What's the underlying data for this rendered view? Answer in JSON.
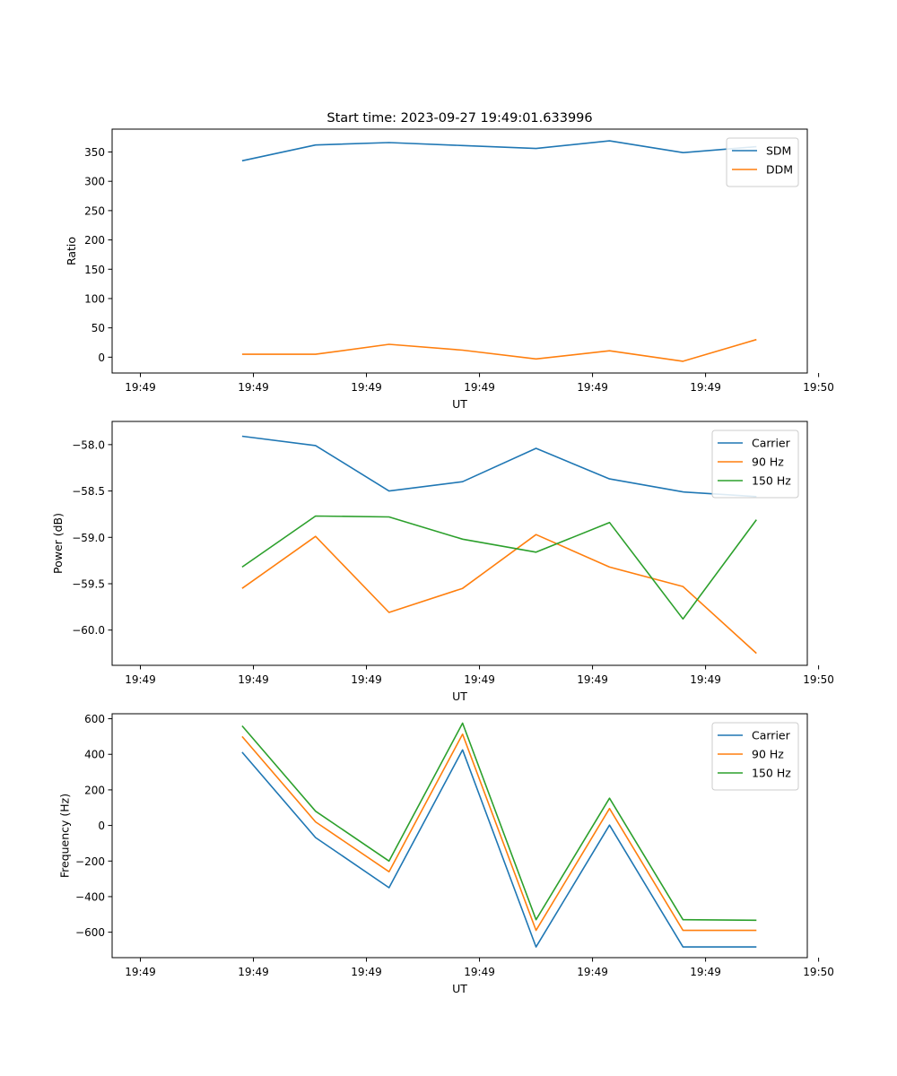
{
  "figure_title": "Start time: 2023-09-27 19:49:01.633996",
  "colors": {
    "blue": "#1f77b4",
    "orange": "#ff7f0e",
    "green": "#2ca02c"
  },
  "chart_data": [
    {
      "type": "line",
      "title": "Start time: 2023-09-27 19:49:01.633996",
      "xlabel": "UT",
      "ylabel": "Ratio",
      "x": [
        0.9,
        1.55,
        2.2,
        2.85,
        3.5,
        4.15,
        4.8,
        5.45
      ],
      "xlim": [
        -0.25,
        5.9
      ],
      "xticks": [
        0,
        1,
        2,
        3,
        4,
        5,
        6
      ],
      "xtick_labels": [
        "19:49",
        "19:49",
        "19:49",
        "19:49",
        "19:49",
        "19:49",
        "19:50"
      ],
      "ylim": [
        -27,
        389
      ],
      "yticks": [
        0,
        50,
        100,
        150,
        200,
        250,
        300,
        350
      ],
      "ytick_labels": [
        "0",
        "50",
        "100",
        "150",
        "200",
        "250",
        "300",
        "350"
      ],
      "legend": "top-right",
      "series": [
        {
          "name": "SDM",
          "color": "#1f77b4",
          "values": [
            335,
            362,
            366,
            361,
            356,
            369,
            349,
            359
          ]
        },
        {
          "name": "DDM",
          "color": "#ff7f0e",
          "values": [
            5,
            5,
            22,
            12,
            -3,
            11,
            -7,
            30
          ]
        }
      ]
    },
    {
      "type": "line",
      "title": "",
      "xlabel": "UT",
      "ylabel": "Power (dB)",
      "x": [
        0.9,
        1.55,
        2.2,
        2.85,
        3.5,
        4.15,
        4.8,
        5.45
      ],
      "xlim": [
        -0.25,
        5.9
      ],
      "xticks": [
        0,
        1,
        2,
        3,
        4,
        5,
        6
      ],
      "xtick_labels": [
        "19:49",
        "19:49",
        "19:49",
        "19:49",
        "19:49",
        "19:49",
        "19:50"
      ],
      "ylim": [
        -60.38,
        -57.75
      ],
      "yticks": [
        -60.0,
        -59.5,
        -59.0,
        -58.5,
        -58.0
      ],
      "ytick_labels": [
        "−60.0",
        "−59.5",
        "−59.0",
        "−58.5",
        "−58.0"
      ],
      "legend": "top-right",
      "series": [
        {
          "name": "Carrier",
          "color": "#1f77b4",
          "values": [
            -57.91,
            -58.01,
            -58.5,
            -58.4,
            -58.04,
            -58.37,
            -58.51,
            -58.56
          ]
        },
        {
          "name": "90 Hz",
          "color": "#ff7f0e",
          "values": [
            -59.55,
            -58.99,
            -59.81,
            -59.55,
            -58.97,
            -59.32,
            -59.53,
            -60.25
          ]
        },
        {
          "name": "150 Hz",
          "color": "#2ca02c",
          "values": [
            -59.32,
            -58.77,
            -58.78,
            -59.02,
            -59.16,
            -58.84,
            -59.88,
            -58.81
          ]
        }
      ]
    },
    {
      "type": "line",
      "title": "",
      "xlabel": "UT",
      "ylabel": "Frequency (Hz)",
      "x": [
        0.9,
        1.55,
        2.2,
        2.85,
        3.5,
        4.15,
        4.8,
        5.45
      ],
      "xlim": [
        -0.25,
        5.9
      ],
      "xticks": [
        0,
        1,
        2,
        3,
        4,
        5,
        6
      ],
      "xtick_labels": [
        "19:49",
        "19:49",
        "19:49",
        "19:49",
        "19:49",
        "19:49",
        "19:50"
      ],
      "ylim": [
        -743,
        628
      ],
      "yticks": [
        -600,
        -400,
        -200,
        0,
        200,
        400,
        600
      ],
      "ytick_labels": [
        "−600",
        "−400",
        "−200",
        "0",
        "200",
        "400",
        "600"
      ],
      "legend": "top-right",
      "series": [
        {
          "name": "Carrier",
          "color": "#1f77b4",
          "values": [
            412,
            -68,
            -350,
            425,
            -683,
            2,
            -683,
            -683
          ]
        },
        {
          "name": "90 Hz",
          "color": "#ff7f0e",
          "values": [
            500,
            20,
            -260,
            513,
            -590,
            95,
            -590,
            -590
          ]
        },
        {
          "name": "150 Hz",
          "color": "#2ca02c",
          "values": [
            560,
            80,
            -200,
            575,
            -530,
            153,
            -530,
            -533
          ]
        }
      ]
    }
  ]
}
